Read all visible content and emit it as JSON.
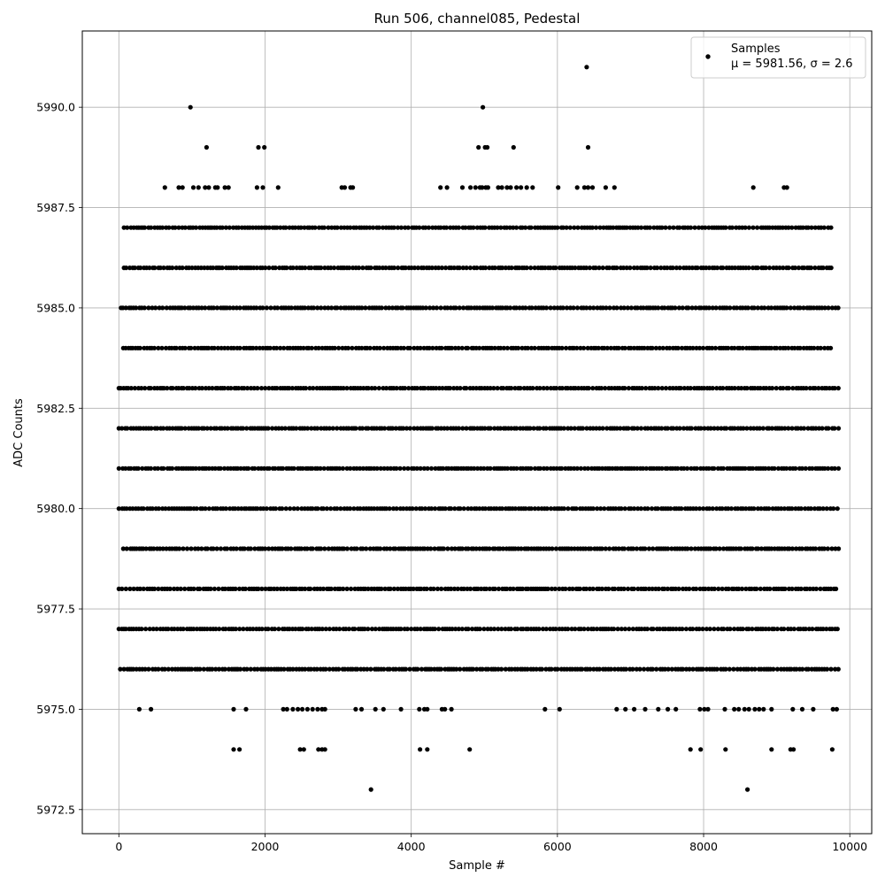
{
  "chart_data": {
    "type": "scatter",
    "title": "Run 506, channel085, Pedestal",
    "xlabel": "Sample #",
    "ylabel": "ADC Counts",
    "xlim": [
      -500,
      10300
    ],
    "ylim": [
      5971.9,
      5991.9
    ],
    "xticks": [
      0,
      2000,
      4000,
      6000,
      8000,
      10000
    ],
    "xtick_labels": [
      "0",
      "2000",
      "4000",
      "6000",
      "8000",
      "10000"
    ],
    "yticks": [
      5972.5,
      5975.0,
      5977.5,
      5980.0,
      5982.5,
      5985.0,
      5987.5,
      5990.0
    ],
    "ytick_labels": [
      "5972.5",
      "5975.0",
      "5977.5",
      "5980.0",
      "5982.5",
      "5985.0",
      "5987.5",
      "5990.0"
    ],
    "grid": true,
    "legend": {
      "position": "upper-right",
      "entries": [
        "Samples",
        "μ = 5981.56, σ = 2.6"
      ]
    },
    "series": [
      {
        "name": "Samples",
        "color": "#000000",
        "x_range": [
          0,
          9850
        ],
        "levels": [
          {
            "y": 5983,
            "segments": [
              [
                0,
                9850
              ]
            ]
          },
          {
            "y": 5982,
            "segments": [
              [
                0,
                9850
              ]
            ]
          },
          {
            "y": 5981,
            "segments": [
              [
                0,
                9850
              ]
            ]
          },
          {
            "y": 5980,
            "segments": [
              [
                0,
                9850
              ]
            ]
          },
          {
            "y": 5984,
            "segments": [
              [
                60,
                9780
              ]
            ]
          },
          {
            "y": 5979,
            "segments": [
              [
                60,
                9850
              ]
            ]
          },
          {
            "y": 5985,
            "segments": [
              [
                30,
                9850
              ]
            ]
          },
          {
            "y": 5978,
            "segments": [
              [
                0,
                9850
              ]
            ]
          },
          {
            "y": 5986,
            "segments": [
              [
                70,
                9780
              ]
            ]
          },
          {
            "y": 5977,
            "segments": [
              [
                0,
                9850
              ]
            ]
          },
          {
            "y": 5987,
            "segments": [
              [
                70,
                9780
              ]
            ]
          },
          {
            "y": 5976,
            "segments": [
              [
                20,
                9850
              ]
            ]
          }
        ],
        "points": [
          {
            "x": 280,
            "y": 5975
          },
          {
            "x": 440,
            "y": 5975
          },
          {
            "x": 1570,
            "y": 5975
          },
          {
            "x": 1740,
            "y": 5975
          },
          {
            "x": 2250,
            "y": 5975
          },
          {
            "x": 2300,
            "y": 5975
          },
          {
            "x": 2380,
            "y": 5975
          },
          {
            "x": 2450,
            "y": 5975
          },
          {
            "x": 2510,
            "y": 5975
          },
          {
            "x": 2580,
            "y": 5975
          },
          {
            "x": 2650,
            "y": 5975
          },
          {
            "x": 2720,
            "y": 5975
          },
          {
            "x": 2780,
            "y": 5975
          },
          {
            "x": 2820,
            "y": 5975
          },
          {
            "x": 3240,
            "y": 5975
          },
          {
            "x": 3320,
            "y": 5975
          },
          {
            "x": 3510,
            "y": 5975
          },
          {
            "x": 3620,
            "y": 5975
          },
          {
            "x": 3860,
            "y": 5975
          },
          {
            "x": 4110,
            "y": 5975
          },
          {
            "x": 4180,
            "y": 5975
          },
          {
            "x": 4220,
            "y": 5975
          },
          {
            "x": 4420,
            "y": 5975
          },
          {
            "x": 4460,
            "y": 5975
          },
          {
            "x": 4550,
            "y": 5975
          },
          {
            "x": 5830,
            "y": 5975
          },
          {
            "x": 6030,
            "y": 5975
          },
          {
            "x": 6810,
            "y": 5975
          },
          {
            "x": 6930,
            "y": 5975
          },
          {
            "x": 7050,
            "y": 5975
          },
          {
            "x": 7200,
            "y": 5975
          },
          {
            "x": 7380,
            "y": 5975
          },
          {
            "x": 7510,
            "y": 5975
          },
          {
            "x": 7620,
            "y": 5975
          },
          {
            "x": 7950,
            "y": 5975
          },
          {
            "x": 8010,
            "y": 5975
          },
          {
            "x": 8060,
            "y": 5975
          },
          {
            "x": 8290,
            "y": 5975
          },
          {
            "x": 8420,
            "y": 5975
          },
          {
            "x": 8480,
            "y": 5975
          },
          {
            "x": 8560,
            "y": 5975
          },
          {
            "x": 8620,
            "y": 5975
          },
          {
            "x": 8700,
            "y": 5975
          },
          {
            "x": 8760,
            "y": 5975
          },
          {
            "x": 8820,
            "y": 5975
          },
          {
            "x": 8930,
            "y": 5975
          },
          {
            "x": 9220,
            "y": 5975
          },
          {
            "x": 9350,
            "y": 5975
          },
          {
            "x": 9500,
            "y": 5975
          },
          {
            "x": 9770,
            "y": 5975
          },
          {
            "x": 9820,
            "y": 5975
          },
          {
            "x": 1570,
            "y": 5974
          },
          {
            "x": 1650,
            "y": 5974
          },
          {
            "x": 2480,
            "y": 5974
          },
          {
            "x": 2530,
            "y": 5974
          },
          {
            "x": 2730,
            "y": 5974
          },
          {
            "x": 2780,
            "y": 5974
          },
          {
            "x": 2820,
            "y": 5974
          },
          {
            "x": 4120,
            "y": 5974
          },
          {
            "x": 4220,
            "y": 5974
          },
          {
            "x": 4800,
            "y": 5974
          },
          {
            "x": 7820,
            "y": 5974
          },
          {
            "x": 7960,
            "y": 5974
          },
          {
            "x": 8300,
            "y": 5974
          },
          {
            "x": 8930,
            "y": 5974
          },
          {
            "x": 9190,
            "y": 5974
          },
          {
            "x": 9230,
            "y": 5974
          },
          {
            "x": 9760,
            "y": 5974
          },
          {
            "x": 3450,
            "y": 5973
          },
          {
            "x": 8600,
            "y": 5973
          },
          {
            "x": 630,
            "y": 5988
          },
          {
            "x": 820,
            "y": 5988
          },
          {
            "x": 870,
            "y": 5988
          },
          {
            "x": 1020,
            "y": 5988
          },
          {
            "x": 1090,
            "y": 5988
          },
          {
            "x": 1180,
            "y": 5988
          },
          {
            "x": 1230,
            "y": 5988
          },
          {
            "x": 1320,
            "y": 5988
          },
          {
            "x": 1350,
            "y": 5988
          },
          {
            "x": 1450,
            "y": 5988
          },
          {
            "x": 1500,
            "y": 5988
          },
          {
            "x": 1890,
            "y": 5988
          },
          {
            "x": 1970,
            "y": 5988
          },
          {
            "x": 2180,
            "y": 5988
          },
          {
            "x": 3050,
            "y": 5988
          },
          {
            "x": 3090,
            "y": 5988
          },
          {
            "x": 3170,
            "y": 5988
          },
          {
            "x": 3200,
            "y": 5988
          },
          {
            "x": 4400,
            "y": 5988
          },
          {
            "x": 4490,
            "y": 5988
          },
          {
            "x": 4700,
            "y": 5988
          },
          {
            "x": 4810,
            "y": 5988
          },
          {
            "x": 4880,
            "y": 5988
          },
          {
            "x": 4940,
            "y": 5988
          },
          {
            "x": 4970,
            "y": 5988
          },
          {
            "x": 5020,
            "y": 5988
          },
          {
            "x": 5050,
            "y": 5988
          },
          {
            "x": 5190,
            "y": 5988
          },
          {
            "x": 5240,
            "y": 5988
          },
          {
            "x": 5310,
            "y": 5988
          },
          {
            "x": 5360,
            "y": 5988
          },
          {
            "x": 5440,
            "y": 5988
          },
          {
            "x": 5500,
            "y": 5988
          },
          {
            "x": 5580,
            "y": 5988
          },
          {
            "x": 5660,
            "y": 5988
          },
          {
            "x": 6010,
            "y": 5988
          },
          {
            "x": 6270,
            "y": 5988
          },
          {
            "x": 6370,
            "y": 5988
          },
          {
            "x": 6420,
            "y": 5988
          },
          {
            "x": 6480,
            "y": 5988
          },
          {
            "x": 6660,
            "y": 5988
          },
          {
            "x": 6780,
            "y": 5988
          },
          {
            "x": 8680,
            "y": 5988
          },
          {
            "x": 9100,
            "y": 5988
          },
          {
            "x": 9140,
            "y": 5988
          },
          {
            "x": 1200,
            "y": 5989
          },
          {
            "x": 1910,
            "y": 5989
          },
          {
            "x": 1990,
            "y": 5989
          },
          {
            "x": 4920,
            "y": 5989
          },
          {
            "x": 5010,
            "y": 5989
          },
          {
            "x": 5040,
            "y": 5989
          },
          {
            "x": 5400,
            "y": 5989
          },
          {
            "x": 6420,
            "y": 5989
          },
          {
            "x": 980,
            "y": 5990
          },
          {
            "x": 4980,
            "y": 5990
          },
          {
            "x": 6400,
            "y": 5991
          }
        ]
      }
    ]
  }
}
